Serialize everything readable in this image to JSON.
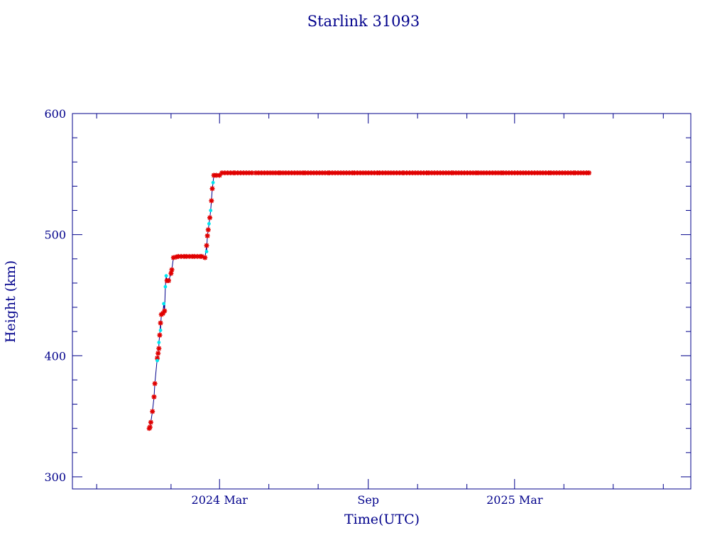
{
  "colors": {
    "axis": "#00008b",
    "line": "#00008b",
    "marker_red": "#e00000",
    "marker_cyan": "#00e5ee"
  },
  "chart_data": {
    "type": "scatter",
    "title": "Starlink 31093",
    "xlabel": "Time(UTC)",
    "ylabel": "Height (km)",
    "x_ticks": [
      "2024 Mar",
      "Sep",
      "2025 Mar"
    ],
    "y_ticks": [
      300,
      400,
      500,
      600
    ],
    "ylim": [
      290,
      600
    ],
    "xlim": [
      "2023-09-01",
      "2025-10-05"
    ],
    "grid": false,
    "series": [
      {
        "marker": "red-star",
        "points": [
          [
            "2023-12-05",
            340
          ],
          [
            "2023-12-06",
            341
          ],
          [
            "2023-12-07",
            345
          ],
          [
            "2023-12-09",
            354
          ],
          [
            "2023-12-11",
            366
          ],
          [
            "2023-12-12",
            377
          ],
          [
            "2023-12-15",
            398
          ],
          [
            "2023-12-16",
            402
          ],
          [
            "2023-12-17",
            406
          ],
          [
            "2023-12-18",
            417
          ],
          [
            "2023-12-19",
            427
          ],
          [
            "2023-12-20",
            434
          ],
          [
            "2023-12-22",
            435
          ],
          [
            "2023-12-24",
            437
          ],
          [
            "2023-12-27",
            462
          ],
          [
            "2023-12-29",
            462
          ],
          [
            "2024-01-01",
            468
          ],
          [
            "2024-01-02",
            471
          ],
          [
            "2024-01-04",
            481
          ],
          [
            "2024-01-10",
            482
          ],
          [
            "2024-01-20",
            482
          ],
          [
            "2024-01-30",
            482
          ],
          [
            "2024-02-08",
            482
          ],
          [
            "2024-02-12",
            481
          ],
          [
            "2024-02-14",
            491
          ],
          [
            "2024-02-15",
            499
          ],
          [
            "2024-02-16",
            504
          ],
          [
            "2024-02-18",
            514
          ],
          [
            "2024-02-20",
            528
          ],
          [
            "2024-02-21",
            538
          ],
          [
            "2024-02-23",
            549
          ],
          [
            "2024-02-26",
            549
          ],
          [
            "2024-03-01",
            549
          ],
          [
            "2024-03-04",
            551
          ],
          [
            "2024-03-20",
            551
          ],
          [
            "2024-04-15",
            551
          ],
          [
            "2024-05-15",
            551
          ],
          [
            "2024-06-15",
            551
          ],
          [
            "2024-07-15",
            551
          ],
          [
            "2024-08-15",
            551
          ],
          [
            "2024-09-15",
            551
          ],
          [
            "2024-10-15",
            551
          ],
          [
            "2024-11-15",
            551
          ],
          [
            "2024-12-15",
            551
          ],
          [
            "2025-01-15",
            551
          ],
          [
            "2025-02-15",
            551
          ],
          [
            "2025-03-15",
            551
          ],
          [
            "2025-04-15",
            551
          ],
          [
            "2025-05-15",
            551
          ],
          [
            "2025-06-01",
            551
          ]
        ]
      },
      {
        "marker": "cyan-dot",
        "points": [
          [
            "2023-12-15",
            396
          ],
          [
            "2023-12-17",
            411
          ],
          [
            "2023-12-19",
            421
          ],
          [
            "2023-12-23",
            443
          ],
          [
            "2023-12-25",
            457
          ],
          [
            "2023-12-26",
            466
          ],
          [
            "2024-02-14",
            486
          ],
          [
            "2024-02-17",
            509
          ],
          [
            "2024-02-19",
            520
          ],
          [
            "2024-02-22",
            543
          ]
        ]
      }
    ]
  }
}
